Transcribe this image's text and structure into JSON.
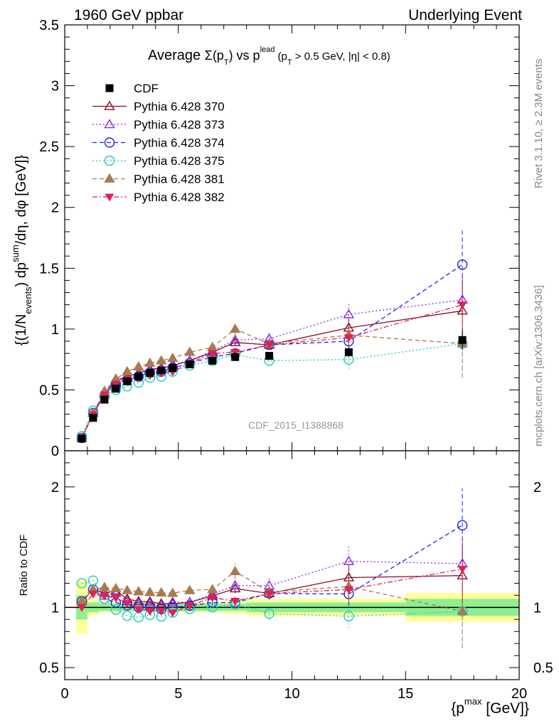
{
  "header": {
    "left": "1960 GeV ppbar",
    "right": "Underlying Event"
  },
  "title": {
    "prefix": "Average ",
    "sigma": "Σ(p",
    "sub_t": "T",
    "mid": ") vs p",
    "sup_lead": "lead",
    "tail": " (p",
    "tail2": " > 0.5 GeV, |η| < 0.8)"
  },
  "ylabel": {
    "a": "{(1/N",
    "events": "events",
    "b": ") dp",
    "sum": "sum",
    "c": "/dη, dφ [GeV]}"
  },
  "ratio_ylabel": "Ratio to CDF",
  "xlabel": {
    "a": "{p",
    "max": "max",
    "b": " [GeV]}"
  },
  "side_texts": {
    "rivet": "Rivet 3.1.10, ≥ 2.3M events",
    "mcplots": "mcplots.cern.ch [arXiv:1306.3436]"
  },
  "watermark": "CDF_2015_I1388868",
  "chart_data": {
    "type": "scatter",
    "xlim": [
      0,
      20
    ],
    "ylim": [
      0,
      3.5
    ],
    "ratio_ylim": [
      0.4,
      2.3
    ],
    "x_ticks": [
      "0",
      "5",
      "10",
      "15",
      "20"
    ],
    "y_ticks": [
      "0",
      "0.5",
      "1",
      "1.5",
      "2",
      "2.5",
      "3",
      "3.5"
    ],
    "ratio_y_ticks": [
      "0.5",
      "1",
      "2"
    ],
    "x": [
      0.75,
      1.25,
      1.75,
      2.25,
      2.75,
      3.25,
      3.75,
      4.25,
      4.75,
      5.5,
      6.5,
      7.5,
      9.0,
      12.5,
      17.5
    ],
    "data": {
      "name": "CDF",
      "values": [
        0.1,
        0.27,
        0.42,
        0.51,
        0.57,
        0.61,
        0.64,
        0.66,
        0.68,
        0.71,
        0.74,
        0.77,
        0.78,
        0.81,
        0.91
      ],
      "errors": [
        0.005,
        0.01,
        0.01,
        0.01,
        0.01,
        0.01,
        0.01,
        0.01,
        0.01,
        0.015,
        0.015,
        0.02,
        0.03,
        0.04,
        0.08
      ]
    },
    "ratio_bands": {
      "x_edges": [
        0.5,
        1.0,
        1.5,
        2.0,
        2.5,
        3.0,
        3.5,
        4.0,
        4.5,
        5.0,
        6.0,
        7.0,
        8.0,
        10.0,
        15.0,
        20.0
      ],
      "green_halfwidth": [
        0.1,
        0.04,
        0.03,
        0.03,
        0.03,
        0.03,
        0.03,
        0.03,
        0.03,
        0.03,
        0.03,
        0.03,
        0.04,
        0.04,
        0.07
      ],
      "yellow_halfwidth": [
        0.22,
        0.07,
        0.04,
        0.04,
        0.04,
        0.04,
        0.04,
        0.04,
        0.04,
        0.04,
        0.04,
        0.05,
        0.07,
        0.07,
        0.12
      ]
    },
    "series": [
      {
        "name": "Pythia 6.428 370",
        "color": "#8b0a1e",
        "marker": "triangle-up-open",
        "dash": "solid",
        "values": [
          0.105,
          0.31,
          0.47,
          0.58,
          0.61,
          0.64,
          0.67,
          0.68,
          0.7,
          0.74,
          0.81,
          0.89,
          0.87,
          1.01,
          1.15
        ],
        "errors": [
          0.005,
          0.01,
          0.01,
          0.01,
          0.01,
          0.01,
          0.01,
          0.01,
          0.01,
          0.015,
          0.02,
          0.03,
          0.04,
          0.08,
          0.25
        ]
      },
      {
        "name": "Pythia 6.428 373",
        "color": "#8a2be2",
        "marker": "triangle-up-open",
        "dash": "dot",
        "values": [
          0.105,
          0.31,
          0.46,
          0.57,
          0.6,
          0.63,
          0.66,
          0.67,
          0.71,
          0.74,
          0.82,
          0.91,
          0.92,
          1.12,
          1.24
        ],
        "errors": [
          0.005,
          0.01,
          0.01,
          0.01,
          0.01,
          0.01,
          0.01,
          0.01,
          0.01,
          0.015,
          0.02,
          0.03,
          0.05,
          0.1,
          0.2
        ]
      },
      {
        "name": "Pythia 6.428 374",
        "color": "#2222dd",
        "marker": "circle-open",
        "dash": "dash",
        "values": [
          0.105,
          0.31,
          0.45,
          0.53,
          0.58,
          0.61,
          0.64,
          0.65,
          0.68,
          0.72,
          0.77,
          0.8,
          0.87,
          0.9,
          1.53
        ],
        "errors": [
          0.005,
          0.01,
          0.01,
          0.01,
          0.01,
          0.01,
          0.01,
          0.01,
          0.01,
          0.015,
          0.02,
          0.03,
          0.04,
          0.08,
          0.28
        ]
      },
      {
        "name": "Pythia 6.428 375",
        "color": "#22ccbb",
        "marker": "circle-open",
        "dash": "dot",
        "values": [
          0.12,
          0.33,
          0.45,
          0.5,
          0.53,
          0.56,
          0.6,
          0.61,
          0.65,
          0.7,
          0.74,
          0.79,
          0.74,
          0.75,
          0.88
        ],
        "errors": [
          0.005,
          0.01,
          0.01,
          0.01,
          0.01,
          0.01,
          0.01,
          0.01,
          0.01,
          0.015,
          0.02,
          0.03,
          0.04,
          0.08,
          0.25
        ]
      },
      {
        "name": "Pythia 6.428 381",
        "color": "#a87a50",
        "marker": "triangle-up-filled",
        "dash": "dash",
        "values": [
          0.105,
          0.31,
          0.49,
          0.59,
          0.65,
          0.69,
          0.72,
          0.74,
          0.76,
          0.81,
          0.85,
          1.0,
          0.88,
          0.95,
          0.88
        ],
        "errors": [
          0.005,
          0.01,
          0.01,
          0.01,
          0.01,
          0.01,
          0.01,
          0.01,
          0.01,
          0.015,
          0.02,
          0.05,
          0.04,
          0.08,
          0.28
        ]
      },
      {
        "name": "Pythia 6.428 382",
        "color": "#dd2255",
        "marker": "triangle-down-filled",
        "dash": "dashdot",
        "values": [
          0.1,
          0.3,
          0.46,
          0.55,
          0.59,
          0.6,
          0.62,
          0.64,
          0.65,
          0.72,
          0.8,
          0.81,
          0.87,
          0.93,
          1.2
        ],
        "errors": [
          0.005,
          0.01,
          0.01,
          0.01,
          0.01,
          0.01,
          0.01,
          0.01,
          0.01,
          0.015,
          0.02,
          0.03,
          0.04,
          0.08,
          0.25
        ]
      }
    ]
  }
}
